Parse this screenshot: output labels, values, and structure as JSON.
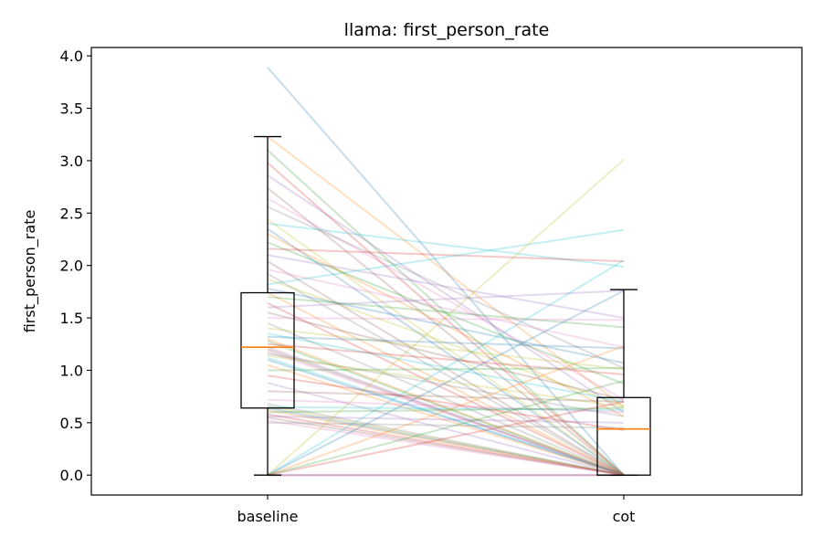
{
  "chart_data": {
    "type": "box-paired-lines",
    "title": "llama: first_person_rate",
    "xlabel": "",
    "ylabel": "first_person_rate",
    "categories": [
      "baseline",
      "cot"
    ],
    "ylim": [
      -0.19,
      4.08
    ],
    "yticks": [
      "0.0",
      "0.5",
      "1.0",
      "1.5",
      "2.0",
      "2.5",
      "3.0",
      "3.5",
      "4.0"
    ],
    "grid": false,
    "legend": "none",
    "box_edge_color": "#000000",
    "median_color": "#ff7f0e",
    "boxes": [
      {
        "name": "baseline",
        "whisker_low": 0.0,
        "q1": 0.64,
        "median": 1.22,
        "q3": 1.74,
        "whisker_high": 3.23
      },
      {
        "name": "cot",
        "whisker_low": 0.0,
        "q1": 0.0,
        "median": 0.44,
        "q3": 0.74,
        "whisker_high": 1.77
      }
    ],
    "pair_line_colors": [
      "#1f77b4",
      "#ff7f0e",
      "#2ca02c",
      "#d62728",
      "#9467bd",
      "#8c564b",
      "#e377c2",
      "#7f7f7f",
      "#bcbd22",
      "#17becf"
    ],
    "pairs": [
      [
        3.89,
        0.0
      ],
      [
        3.23,
        0.65
      ],
      [
        3.1,
        0.0
      ],
      [
        2.98,
        0.0
      ],
      [
        2.86,
        0.6
      ],
      [
        2.74,
        0.0
      ],
      [
        2.64,
        0.72
      ],
      [
        2.56,
        1.02
      ],
      [
        2.44,
        0.0
      ],
      [
        2.4,
        1.99
      ],
      [
        2.35,
        0.0
      ],
      [
        2.3,
        0.56
      ],
      [
        2.22,
        0.87
      ],
      [
        2.16,
        2.04
      ],
      [
        2.1,
        1.5
      ],
      [
        2.04,
        0.0
      ],
      [
        1.96,
        1.22
      ],
      [
        1.92,
        0.0
      ],
      [
        1.87,
        0.66
      ],
      [
        1.82,
        2.34
      ],
      [
        1.78,
        1.07
      ],
      [
        1.74,
        0.0
      ],
      [
        1.7,
        1.41
      ],
      [
        1.64,
        0.0
      ],
      [
        1.6,
        1.76
      ],
      [
        1.55,
        0.72
      ],
      [
        1.5,
        1.48
      ],
      [
        1.45,
        0.0
      ],
      [
        1.4,
        1.01
      ],
      [
        1.35,
        0.7
      ],
      [
        1.32,
        1.21
      ],
      [
        1.3,
        0.0
      ],
      [
        1.28,
        0.0
      ],
      [
        1.25,
        0.96
      ],
      [
        1.22,
        0.0
      ],
      [
        1.2,
        0.0
      ],
      [
        1.18,
        0.0
      ],
      [
        1.16,
        0.56
      ],
      [
        1.14,
        0.65
      ],
      [
        1.12,
        0.0
      ],
      [
        1.1,
        0.0
      ],
      [
        1.05,
        0.0
      ],
      [
        1.0,
        1.02
      ],
      [
        0.95,
        0.43
      ],
      [
        0.88,
        0.0
      ],
      [
        0.8,
        0.7
      ],
      [
        0.72,
        0.6
      ],
      [
        0.68,
        0.0
      ],
      [
        0.66,
        0.0
      ],
      [
        0.65,
        0.62
      ],
      [
        0.64,
        0.0
      ],
      [
        0.62,
        0.0
      ],
      [
        0.6,
        0.64
      ],
      [
        0.58,
        0.0
      ],
      [
        0.56,
        0.5
      ],
      [
        0.55,
        0.0
      ],
      [
        0.52,
        0.0
      ],
      [
        0.5,
        0.45
      ],
      [
        0.0,
        3.01
      ],
      [
        0.0,
        2.05
      ],
      [
        0.0,
        1.76
      ],
      [
        0.0,
        1.23
      ],
      [
        0.0,
        0.9
      ],
      [
        0.0,
        0.7
      ],
      [
        0.0,
        0.0
      ],
      [
        0.0,
        0.0
      ],
      [
        0.0,
        0.0
      ]
    ]
  }
}
